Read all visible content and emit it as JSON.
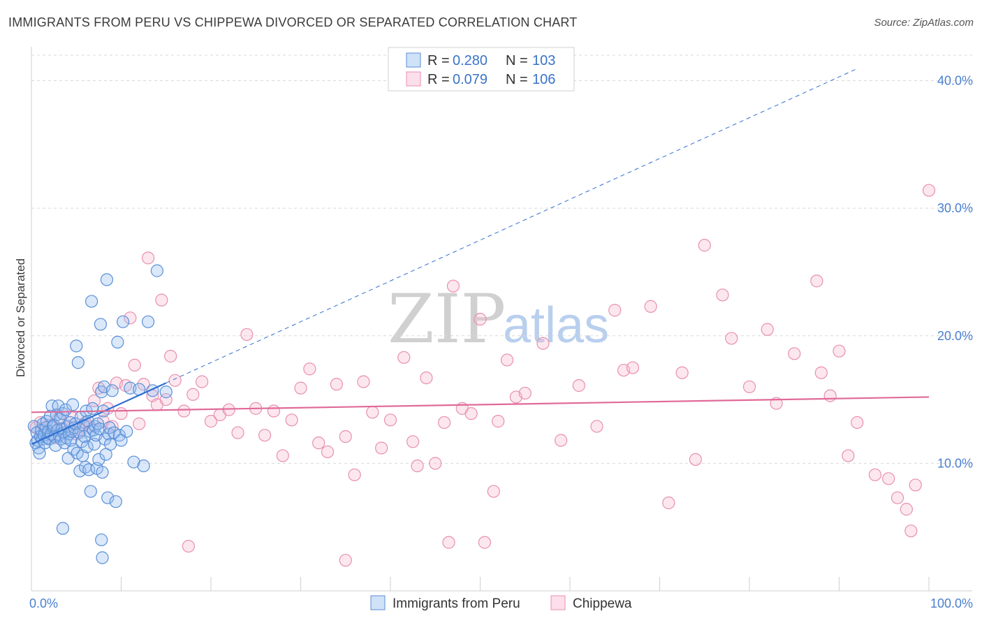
{
  "title": "IMMIGRANTS FROM PERU VS CHIPPEWA DIVORCED OR SEPARATED CORRELATION CHART",
  "source": "Source: ZipAtlas.com",
  "watermark": {
    "zip": "ZIP",
    "atlas": "atlas"
  },
  "colors": {
    "peru": "#5b8fd6",
    "chippewa": "#e88fb0",
    "peru_line": "#2f6fd0",
    "chip_line": "#e06a98"
  },
  "legend": {
    "rows": [
      {
        "r_label": "R =",
        "r_value": "0.280",
        "n_label": "N =",
        "n_value": "103"
      },
      {
        "r_label": "R =",
        "r_value": "0.079",
        "n_label": "N =",
        "n_value": "106"
      }
    ]
  },
  "bottom_legend": {
    "peru": "Immigrants from Peru",
    "chippewa": "Chippewa"
  },
  "chart_data": {
    "type": "scatter",
    "title": "IMMIGRANTS FROM PERU VS CHIPPEWA DIVORCED OR SEPARATED CORRELATION CHART",
    "xlabel": "",
    "ylabel": "Divorced or Separated",
    "xlim": [
      0,
      100
    ],
    "ylim": [
      0,
      42
    ],
    "x_tick_labels": [
      "0.0%",
      "100.0%"
    ],
    "y_ticks": [
      10,
      20,
      30,
      40
    ],
    "y_tick_labels": [
      "10.0%",
      "20.0%",
      "30.0%",
      "40.0%"
    ],
    "grid": true,
    "legend_position": "top-center",
    "series": [
      {
        "name": "Immigrants from Peru",
        "r": 0.28,
        "n": 103,
        "trend": {
          "x0": 0,
          "y0": 11.5,
          "x1": 15,
          "y1": 16.3,
          "dashed_to_x": 100,
          "dashed_to_y": 43.5
        },
        "points": [
          [
            0.3,
            12.9
          ],
          [
            0.5,
            11.6
          ],
          [
            0.6,
            12.4
          ],
          [
            0.7,
            11.8
          ],
          [
            0.8,
            11.2
          ],
          [
            0.9,
            10.8
          ],
          [
            1.0,
            12.1
          ],
          [
            1.1,
            12.6
          ],
          [
            1.2,
            11.9
          ],
          [
            1.3,
            13.1
          ],
          [
            1.4,
            12.2
          ],
          [
            1.5,
            11.6
          ],
          [
            1.6,
            12.8
          ],
          [
            1.7,
            13.3
          ],
          [
            1.8,
            12.0
          ],
          [
            1.9,
            12.5
          ],
          [
            2.0,
            11.9
          ],
          [
            2.1,
            13.7
          ],
          [
            2.2,
            12.3
          ],
          [
            2.3,
            14.5
          ],
          [
            2.4,
            12.9
          ],
          [
            2.5,
            13.0
          ],
          [
            2.6,
            12.1
          ],
          [
            2.7,
            11.4
          ],
          [
            2.8,
            13.8
          ],
          [
            2.9,
            12.6
          ],
          [
            3.0,
            14.5
          ],
          [
            3.1,
            12.2
          ],
          [
            3.2,
            13.5
          ],
          [
            3.3,
            11.9
          ],
          [
            3.4,
            12.7
          ],
          [
            3.5,
            13.9
          ],
          [
            3.6,
            12.4
          ],
          [
            3.7,
            11.6
          ],
          [
            3.8,
            14.2
          ],
          [
            3.9,
            12.0
          ],
          [
            4.0,
            12.9
          ],
          [
            4.1,
            10.4
          ],
          [
            4.2,
            12.3
          ],
          [
            4.3,
            13.2
          ],
          [
            4.4,
            11.8
          ],
          [
            4.5,
            12.5
          ],
          [
            4.6,
            14.6
          ],
          [
            4.7,
            11.1
          ],
          [
            4.8,
            12.8
          ],
          [
            4.9,
            13.1
          ],
          [
            5.0,
            19.2
          ],
          [
            5.1,
            10.8
          ],
          [
            5.2,
            17.9
          ],
          [
            5.3,
            12.4
          ],
          [
            5.4,
            9.4
          ],
          [
            5.5,
            13.6
          ],
          [
            5.6,
            11.7
          ],
          [
            5.7,
            10.6
          ],
          [
            5.8,
            13.0
          ],
          [
            5.9,
            12.1
          ],
          [
            6.0,
            9.7
          ],
          [
            6.1,
            14.1
          ],
          [
            6.2,
            11.3
          ],
          [
            6.3,
            13.3
          ],
          [
            6.4,
            9.5
          ],
          [
            6.5,
            12.5
          ],
          [
            6.6,
            7.8
          ],
          [
            6.7,
            22.7
          ],
          [
            6.8,
            14.3
          ],
          [
            6.9,
            12.6
          ],
          [
            7.0,
            11.5
          ],
          [
            7.1,
            12.9
          ],
          [
            7.2,
            12.2
          ],
          [
            7.3,
            9.6
          ],
          [
            7.4,
            13.1
          ],
          [
            7.5,
            10.3
          ],
          [
            7.6,
            12.7
          ],
          [
            7.7,
            20.9
          ],
          [
            7.8,
            15.6
          ],
          [
            7.9,
            9.3
          ],
          [
            8.0,
            14.1
          ],
          [
            8.1,
            16.0
          ],
          [
            8.2,
            11.9
          ],
          [
            8.3,
            10.7
          ],
          [
            8.4,
            24.4
          ],
          [
            8.5,
            7.3
          ],
          [
            8.6,
            12.3
          ],
          [
            8.7,
            12.8
          ],
          [
            8.8,
            11.5
          ],
          [
            9.0,
            15.7
          ],
          [
            9.2,
            12.4
          ],
          [
            9.4,
            7.0
          ],
          [
            9.6,
            19.5
          ],
          [
            9.8,
            12.2
          ],
          [
            10.0,
            11.8
          ],
          [
            10.2,
            21.1
          ],
          [
            10.6,
            12.5
          ],
          [
            11.0,
            15.9
          ],
          [
            11.4,
            10.1
          ],
          [
            12.0,
            15.8
          ],
          [
            12.5,
            9.8
          ],
          [
            13.0,
            21.1
          ],
          [
            13.5,
            15.7
          ],
          [
            14.0,
            25.1
          ],
          [
            15.0,
            15.6
          ],
          [
            3.5,
            4.9
          ],
          [
            7.8,
            4.0
          ],
          [
            7.9,
            2.6
          ]
        ]
      },
      {
        "name": "Chippewa",
        "r": 0.079,
        "n": 106,
        "trend": {
          "x0": 0,
          "y0": 14.0,
          "x1": 100,
          "y1": 15.2
        },
        "points": [
          [
            0.5,
            12.8
          ],
          [
            1.0,
            13.2
          ],
          [
            1.5,
            12.4
          ],
          [
            2.0,
            13.0
          ],
          [
            2.5,
            12.0
          ],
          [
            3.0,
            13.5
          ],
          [
            3.5,
            12.7
          ],
          [
            4.0,
            12.9
          ],
          [
            4.5,
            13.6
          ],
          [
            5.0,
            12.3
          ],
          [
            5.5,
            12.6
          ],
          [
            6.0,
            13.2
          ],
          [
            6.5,
            12.9
          ],
          [
            7.0,
            14.9
          ],
          [
            7.5,
            15.9
          ],
          [
            8.0,
            13.3
          ],
          [
            8.5,
            14.3
          ],
          [
            9.0,
            12.9
          ],
          [
            9.5,
            16.3
          ],
          [
            10.0,
            13.9
          ],
          [
            10.5,
            16.1
          ],
          [
            11.0,
            21.4
          ],
          [
            11.5,
            17.7
          ],
          [
            12.0,
            13.1
          ],
          [
            12.5,
            16.2
          ],
          [
            13.0,
            26.1
          ],
          [
            13.5,
            15.3
          ],
          [
            14.0,
            14.6
          ],
          [
            14.5,
            22.8
          ],
          [
            15.0,
            15.0
          ],
          [
            15.5,
            18.4
          ],
          [
            16.0,
            16.5
          ],
          [
            17.0,
            14.1
          ],
          [
            17.5,
            3.5
          ],
          [
            18.0,
            15.4
          ],
          [
            19.0,
            16.4
          ],
          [
            20.0,
            13.3
          ],
          [
            21.0,
            13.8
          ],
          [
            22.0,
            14.2
          ],
          [
            23.0,
            12.4
          ],
          [
            24.0,
            20.1
          ],
          [
            25.0,
            14.3
          ],
          [
            26.0,
            12.2
          ],
          [
            27.0,
            14.1
          ],
          [
            28.0,
            10.6
          ],
          [
            29.0,
            13.4
          ],
          [
            30.0,
            15.9
          ],
          [
            31.0,
            17.4
          ],
          [
            32.0,
            11.6
          ],
          [
            33.0,
            10.9
          ],
          [
            34.0,
            16.2
          ],
          [
            35.0,
            12.1
          ],
          [
            36.0,
            9.1
          ],
          [
            37.0,
            16.4
          ],
          [
            38.0,
            14.0
          ],
          [
            39.0,
            11.2
          ],
          [
            40.0,
            13.4
          ],
          [
            41.5,
            18.3
          ],
          [
            42.5,
            11.7
          ],
          [
            43.0,
            9.8
          ],
          [
            44.0,
            16.7
          ],
          [
            45.0,
            10.0
          ],
          [
            46.0,
            13.2
          ],
          [
            47.0,
            23.9
          ],
          [
            48.0,
            14.3
          ],
          [
            49.0,
            13.9
          ],
          [
            50.0,
            21.3
          ],
          [
            51.5,
            7.8
          ],
          [
            52.0,
            13.3
          ],
          [
            53.0,
            18.1
          ],
          [
            54.0,
            15.2
          ],
          [
            55.0,
            15.5
          ],
          [
            57.0,
            19.4
          ],
          [
            59.0,
            11.8
          ],
          [
            61.0,
            16.1
          ],
          [
            63.0,
            12.9
          ],
          [
            65.0,
            22.0
          ],
          [
            66.0,
            17.3
          ],
          [
            67.0,
            17.5
          ],
          [
            69.0,
            22.3
          ],
          [
            71.0,
            6.9
          ],
          [
            72.5,
            17.1
          ],
          [
            74.0,
            10.3
          ],
          [
            75.0,
            27.1
          ],
          [
            77.0,
            23.2
          ],
          [
            78.0,
            19.8
          ],
          [
            80.0,
            16.0
          ],
          [
            82.0,
            20.5
          ],
          [
            83.0,
            14.7
          ],
          [
            85.0,
            18.6
          ],
          [
            87.5,
            24.3
          ],
          [
            88.0,
            17.1
          ],
          [
            89.0,
            15.3
          ],
          [
            90.0,
            18.8
          ],
          [
            91.0,
            10.6
          ],
          [
            92.0,
            13.2
          ],
          [
            94.0,
            9.1
          ],
          [
            95.5,
            8.8
          ],
          [
            96.5,
            7.3
          ],
          [
            97.5,
            6.4
          ],
          [
            98.0,
            4.7
          ],
          [
            98.5,
            8.3
          ],
          [
            100.0,
            31.4
          ],
          [
            46.5,
            3.8
          ],
          [
            50.5,
            3.8
          ],
          [
            35.0,
            2.4
          ]
        ]
      }
    ]
  }
}
